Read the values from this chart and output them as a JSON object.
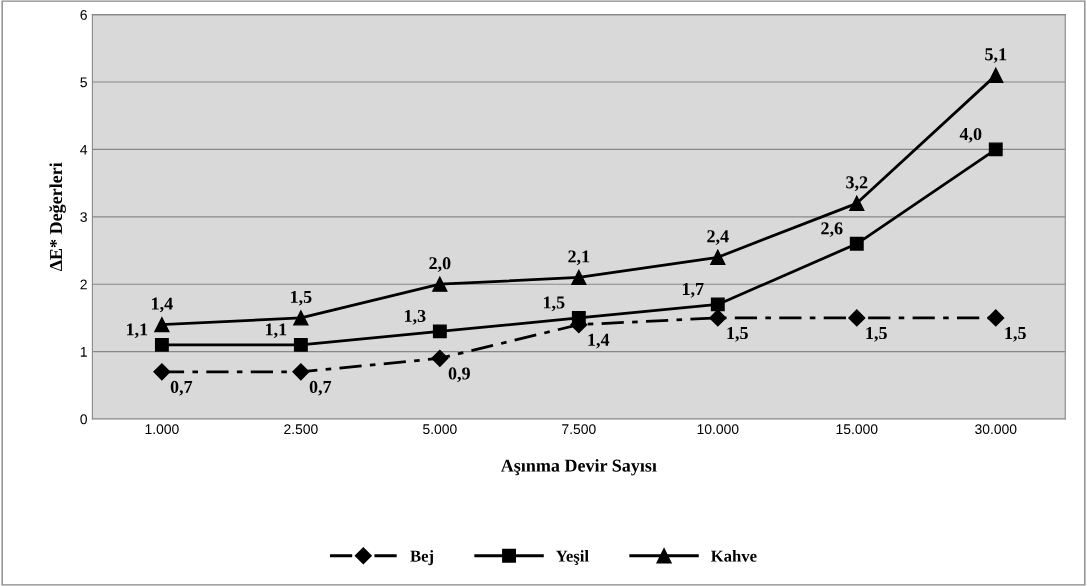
{
  "chart_data": {
    "type": "line",
    "xlabel": "Aşınma Devir Sayısı",
    "ylabel": "ΔE* Değerleri",
    "categories": [
      "1.000",
      "2.500",
      "5.000",
      "7.500",
      "10.000",
      "15.000",
      "30.000"
    ],
    "series": [
      {
        "name": "Bej",
        "color": "#000000",
        "marker": "diamond",
        "line_style": "dashed",
        "values": [
          0.7,
          0.7,
          0.9,
          1.4,
          1.5,
          1.5,
          1.5
        ],
        "value_labels": [
          "0,7",
          "0,7",
          "0,9",
          "1,4",
          "1,5",
          "1,5",
          "1,5"
        ]
      },
      {
        "name": "Yeşil",
        "color": "#000000",
        "marker": "square",
        "line_style": "solid",
        "values": [
          1.1,
          1.1,
          1.3,
          1.5,
          1.7,
          2.6,
          4.0
        ],
        "value_labels": [
          "1,1",
          "1,1",
          "1,3",
          "1,5",
          "1,7",
          "2,6",
          "4,0"
        ]
      },
      {
        "name": "Kahve",
        "color": "#000000",
        "marker": "triangle",
        "line_style": "solid",
        "values": [
          1.4,
          1.5,
          2.0,
          2.1,
          2.4,
          3.2,
          5.1
        ],
        "value_labels": [
          "1,4",
          "1,5",
          "2,0",
          "2,1",
          "2,4",
          "3,2",
          "5,1"
        ]
      }
    ],
    "ylim": [
      0,
      6
    ],
    "yticks": [
      0,
      1,
      2,
      3,
      4,
      5,
      6
    ],
    "grid": "y",
    "legend": "bottom"
  }
}
